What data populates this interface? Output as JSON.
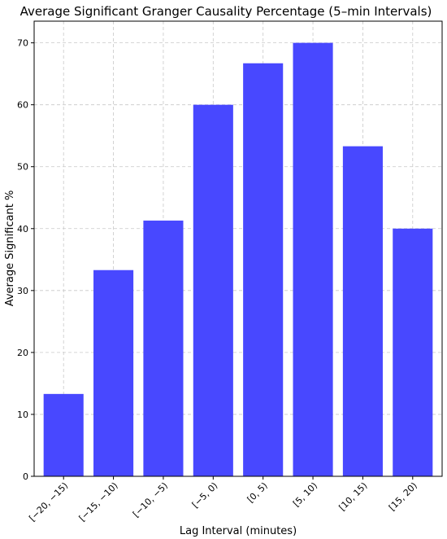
{
  "chart_data": {
    "type": "bar",
    "title": "Average Significant Granger Causality Percentage (5–min Intervals)",
    "xlabel": "Lag Interval (minutes)",
    "ylabel": "Average Significant %",
    "categories": [
      "[−20, −15)",
      "[−15, −10)",
      "[−10, −5)",
      "[−5, 0)",
      "[0, 5)",
      "[5, 10)",
      "[10, 15)",
      "[15, 20)"
    ],
    "values": [
      13.3,
      33.3,
      41.3,
      60.0,
      66.7,
      70.0,
      53.3,
      40.0
    ],
    "ylim": [
      0,
      73.5
    ],
    "yticks": [
      0,
      10,
      20,
      30,
      40,
      50,
      60,
      70
    ],
    "grid": true,
    "bar_color": "#4848ff"
  }
}
